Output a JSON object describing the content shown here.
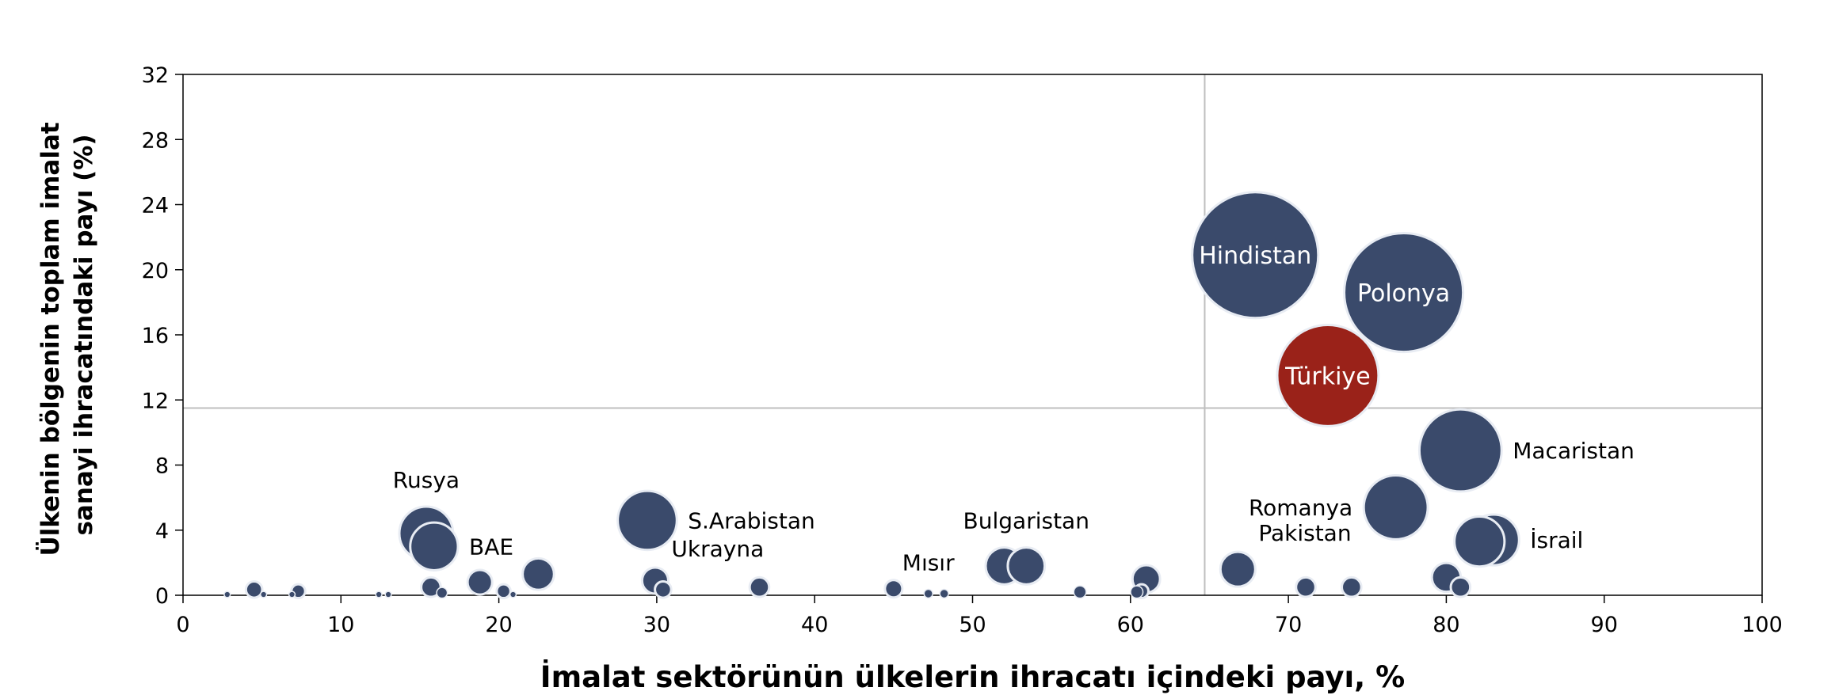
{
  "colors": {
    "bubble": "#3a4a6b",
    "highlight": "#9a2219",
    "bubble_stroke": "#e8ecf3",
    "reference_line": "#bfbfbf",
    "axis": "#000000"
  },
  "chart_data": {
    "type": "bubble",
    "title": "",
    "xlabel": "İmalat sektörünün ülkelerin ihracatı içindeki payı, %",
    "ylabel_lines": [
      "Ülkenin bölgenin toplam imalat",
      "sanayi ihracatındaki payı (%)"
    ],
    "xlim": [
      0,
      100
    ],
    "ylim": [
      0,
      32
    ],
    "x_ticks": [
      0,
      10,
      20,
      30,
      40,
      50,
      60,
      70,
      80,
      90,
      100
    ],
    "y_ticks": [
      0,
      4,
      8,
      12,
      16,
      20,
      24,
      28,
      32
    ],
    "reference_lines": {
      "x": 64.7,
      "y": 11.5
    },
    "grid": false,
    "points": [
      {
        "x": 67.9,
        "y": 20.9,
        "size": 20.9,
        "label": "Hindistan",
        "label_pos": "inside",
        "highlight": false
      },
      {
        "x": 77.3,
        "y": 18.6,
        "size": 18.6,
        "label": "Polonya",
        "label_pos": "inside",
        "highlight": false
      },
      {
        "x": 72.5,
        "y": 13.5,
        "size": 13.5,
        "label": "Türkiye",
        "label_pos": "inside",
        "highlight": true
      },
      {
        "x": 80.9,
        "y": 8.9,
        "size": 8.9,
        "label": "Macaristan",
        "label_pos": "right",
        "highlight": false
      },
      {
        "x": 76.8,
        "y": 5.4,
        "size": 5.4,
        "label": "Romanya",
        "label_pos": "left",
        "highlight": false
      },
      {
        "x": 83.0,
        "y": 3.4,
        "size": 3.4,
        "label": "İsrail",
        "label_pos": "right",
        "highlight": false
      },
      {
        "x": 82.1,
        "y": 3.3,
        "size": 3.3,
        "label": "",
        "label_pos": "none",
        "highlight": false
      },
      {
        "x": 66.8,
        "y": 1.6,
        "size": 1.6,
        "label": "Pakistan",
        "label_pos": "above-right",
        "highlight": false
      },
      {
        "x": 15.4,
        "y": 3.8,
        "size": 3.8,
        "label": "Rusya",
        "label_pos": "above",
        "highlight": false
      },
      {
        "x": 15.9,
        "y": 3.0,
        "size": 3.0,
        "label": "BAE",
        "label_pos": "right",
        "highlight": false
      },
      {
        "x": 29.4,
        "y": 4.6,
        "size": 4.6,
        "label": "S.Arabistan",
        "label_pos": "right",
        "highlight": false
      },
      {
        "x": 29.9,
        "y": 0.9,
        "size": 0.9,
        "label": "Ukrayna",
        "label_pos": "above-right",
        "highlight": false
      },
      {
        "x": 52.0,
        "y": 1.8,
        "size": 1.8,
        "label": "",
        "label_pos": "none",
        "highlight": false
      },
      {
        "x": 53.4,
        "y": 1.8,
        "size": 1.8,
        "label": "Bulgaristan",
        "label_pos": "above",
        "highlight": false
      },
      {
        "x": 47.2,
        "y": 0.1,
        "size": 0.1,
        "label": "Mısır",
        "label_pos": "above",
        "highlight": false
      },
      {
        "x": 22.5,
        "y": 1.3,
        "size": 1.3,
        "label": "",
        "label_pos": "none",
        "highlight": false
      },
      {
        "x": 18.8,
        "y": 0.8,
        "size": 0.8,
        "label": "",
        "label_pos": "none",
        "highlight": false
      },
      {
        "x": 61.0,
        "y": 1.0,
        "size": 1.0,
        "label": "",
        "label_pos": "none",
        "highlight": false
      },
      {
        "x": 80.0,
        "y": 1.1,
        "size": 1.1,
        "label": "",
        "label_pos": "none",
        "highlight": false
      },
      {
        "x": 80.9,
        "y": 0.5,
        "size": 0.5,
        "label": "",
        "label_pos": "none",
        "highlight": false
      },
      {
        "x": 71.1,
        "y": 0.5,
        "size": 0.5,
        "label": "",
        "label_pos": "none",
        "highlight": false
      },
      {
        "x": 74.0,
        "y": 0.5,
        "size": 0.5,
        "label": "",
        "label_pos": "none",
        "highlight": false
      },
      {
        "x": 36.5,
        "y": 0.5,
        "size": 0.5,
        "label": "",
        "label_pos": "none",
        "highlight": false
      },
      {
        "x": 45.0,
        "y": 0.4,
        "size": 0.4,
        "label": "",
        "label_pos": "none",
        "highlight": false
      },
      {
        "x": 15.7,
        "y": 0.5,
        "size": 0.5,
        "label": "",
        "label_pos": "none",
        "highlight": false
      },
      {
        "x": 30.4,
        "y": 0.35,
        "size": 0.35,
        "label": "",
        "label_pos": "none",
        "highlight": false
      },
      {
        "x": 4.5,
        "y": 0.35,
        "size": 0.35,
        "label": "",
        "label_pos": "none",
        "highlight": false
      },
      {
        "x": 7.3,
        "y": 0.25,
        "size": 0.25,
        "label": "",
        "label_pos": "none",
        "highlight": false
      },
      {
        "x": 20.3,
        "y": 0.25,
        "size": 0.25,
        "label": "",
        "label_pos": "none",
        "highlight": false
      },
      {
        "x": 56.8,
        "y": 0.2,
        "size": 0.2,
        "label": "",
        "label_pos": "none",
        "highlight": false
      },
      {
        "x": 60.4,
        "y": 0.2,
        "size": 0.2,
        "label": "",
        "label_pos": "none",
        "highlight": false
      },
      {
        "x": 60.7,
        "y": 0.25,
        "size": 0.25,
        "label": "",
        "label_pos": "none",
        "highlight": false
      },
      {
        "x": 16.4,
        "y": 0.15,
        "size": 0.15,
        "label": "",
        "label_pos": "none",
        "highlight": false
      },
      {
        "x": 48.2,
        "y": 0.1,
        "size": 0.1,
        "label": "",
        "label_pos": "none",
        "highlight": false
      },
      {
        "x": 2.8,
        "y": 0.05,
        "size": 0.05,
        "label": "",
        "label_pos": "none",
        "highlight": false
      },
      {
        "x": 5.1,
        "y": 0.05,
        "size": 0.05,
        "label": "",
        "label_pos": "none",
        "highlight": false
      },
      {
        "x": 6.9,
        "y": 0.05,
        "size": 0.05,
        "label": "",
        "label_pos": "none",
        "highlight": false
      },
      {
        "x": 12.4,
        "y": 0.05,
        "size": 0.05,
        "label": "",
        "label_pos": "none",
        "highlight": false
      },
      {
        "x": 13.0,
        "y": 0.05,
        "size": 0.05,
        "label": "",
        "label_pos": "none",
        "highlight": false
      },
      {
        "x": 20.9,
        "y": 0.05,
        "size": 0.05,
        "label": "",
        "label_pos": "none",
        "highlight": false
      }
    ]
  }
}
